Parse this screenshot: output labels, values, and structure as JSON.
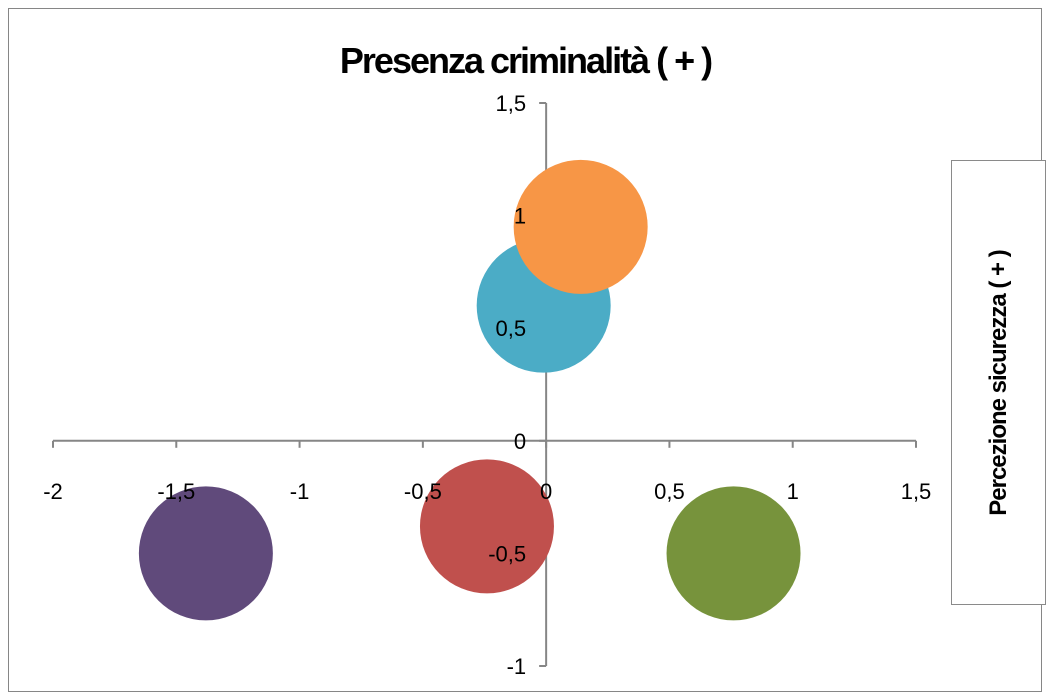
{
  "chart_data": {
    "type": "bubble",
    "title": "Presenza criminalità ( + )",
    "xlabel": "",
    "ylabel": "Percezione sicurezza ( + )",
    "xlim": [
      -2,
      1.5
    ],
    "ylim": [
      -1,
      1.5
    ],
    "x_ticks": [
      "-2",
      "-1,5",
      "-1",
      "-0,5",
      "0",
      "0,5",
      "1",
      "1,5"
    ],
    "y_ticks": [
      "-1",
      "-0,5",
      "0",
      "0,5",
      "1",
      "1,5"
    ],
    "grid": false,
    "legend": "none",
    "points": [
      {
        "x": -1.38,
        "y": -0.5,
        "color": "#604a7b"
      },
      {
        "x": -0.24,
        "y": -0.38,
        "color": "#c0504d"
      },
      {
        "x": 0.76,
        "y": -0.5,
        "color": "#77933c"
      },
      {
        "x": -0.01,
        "y": 0.6,
        "color": "#4bacc6"
      },
      {
        "x": 0.14,
        "y": 0.95,
        "color": "#f79646"
      }
    ]
  }
}
